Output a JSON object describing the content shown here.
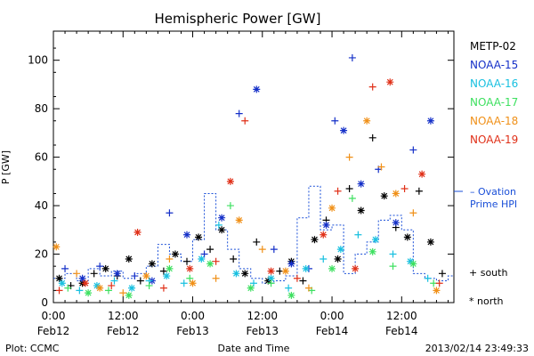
{
  "chart_data": {
    "type": "scatter",
    "title": "Hemispheric Power [GW]",
    "ylabel": "P [GW]",
    "xlabel": "Date and Time",
    "ylim": [
      0,
      112
    ],
    "xlim": [
      0,
      69
    ],
    "yticks": [
      0,
      20,
      40,
      60,
      80,
      100
    ],
    "xticks": [
      {
        "x": 0,
        "line1": "0:00",
        "line2": "Feb12"
      },
      {
        "x": 12,
        "line1": "12:00",
        "line2": "Feb12"
      },
      {
        "x": 24,
        "line1": "0:00",
        "line2": "Feb13"
      },
      {
        "x": 36,
        "line1": "12:00",
        "line2": "Feb13"
      },
      {
        "x": 48,
        "line1": "0:00",
        "line2": "Feb14"
      },
      {
        "x": 60,
        "line1": "12:00",
        "line2": "Feb14"
      }
    ],
    "footer_left": "Plot: CCMC",
    "footer_right": "2013/02/14 23:49:33",
    "legend_placement": "right",
    "marker_key": {
      "south": "+ south",
      "north": "* north"
    },
    "ovation_label_1": "– Ovation",
    "ovation_label_2": "Prime HPI",
    "ovation_color": "#1a4fd8",
    "ovation": {
      "x": [
        0,
        2,
        4,
        6,
        8,
        10,
        12,
        14,
        16,
        18,
        20,
        22,
        24,
        26,
        28,
        30,
        32,
        34,
        36,
        38,
        40,
        42,
        44,
        46,
        48,
        50,
        52,
        54,
        56,
        58,
        60,
        62,
        64,
        66,
        68
      ],
      "y": [
        10,
        12,
        9,
        14,
        11,
        13,
        10,
        12,
        15,
        24,
        20,
        17,
        26,
        45,
        30,
        22,
        14,
        10,
        8,
        9,
        11,
        35,
        48,
        30,
        32,
        12,
        20,
        25,
        34,
        36,
        30,
        12,
        10,
        9,
        11
      ]
    },
    "series": [
      {
        "name": "METP-02",
        "color": "#000000",
        "x": [
          1,
          3,
          5,
          7,
          9,
          11,
          13,
          15,
          17,
          19,
          21,
          23,
          25,
          27,
          29,
          31,
          33,
          35,
          37,
          39,
          41,
          43,
          45,
          47,
          49,
          51,
          53,
          55,
          57,
          59,
          61,
          63,
          65,
          67
        ],
        "y": [
          10,
          7,
          8,
          12,
          14,
          11,
          18,
          9,
          16,
          13,
          20,
          17,
          27,
          22,
          30,
          18,
          12,
          25,
          9,
          13,
          17,
          9,
          26,
          34,
          18,
          47,
          38,
          68,
          44,
          31,
          27,
          46,
          25,
          12
        ]
      },
      {
        "name": "NOAA-15",
        "color": "#1530c8",
        "x": [
          2,
          5,
          8,
          11,
          14,
          17,
          20,
          23,
          26,
          29,
          32,
          35,
          38,
          41,
          44,
          47,
          48.5,
          50,
          51.5,
          53,
          56,
          59,
          62,
          65
        ],
        "y": [
          14,
          10,
          15,
          12,
          11,
          9,
          37,
          28,
          20,
          35,
          78,
          88,
          22,
          16,
          14,
          32,
          75,
          71,
          101,
          49,
          55,
          33,
          63,
          75
        ]
      },
      {
        "name": "NOAA-16",
        "color": "#18c0e0",
        "x": [
          1.5,
          4.5,
          7.5,
          10.5,
          13.5,
          16.5,
          19.5,
          22.5,
          25.5,
          28.5,
          31.5,
          34.5,
          37.5,
          40.5,
          43.5,
          46.5,
          49.5,
          52.5,
          55.5,
          58.5,
          61.5,
          64.5
        ],
        "y": [
          8,
          5,
          7,
          9,
          6,
          9,
          11,
          8,
          18,
          32,
          12,
          8,
          10,
          6,
          14,
          18,
          22,
          28,
          26,
          20,
          17,
          10
        ]
      },
      {
        "name": "NOAA-17",
        "color": "#3ee060",
        "x": [
          2.5,
          6,
          9.5,
          13,
          16.5,
          20,
          23.5,
          27,
          30.5,
          34,
          37.5,
          41,
          44.5,
          48,
          51.5,
          55,
          58.5,
          62,
          65.5
        ],
        "y": [
          6,
          4,
          5,
          3,
          7,
          14,
          10,
          16,
          40,
          6,
          8,
          3,
          5,
          14,
          43,
          21,
          15,
          16,
          8
        ]
      },
      {
        "name": "NOAA-18",
        "color": "#f09018",
        "x": [
          0.5,
          4,
          8,
          12,
          16,
          20,
          24,
          28,
          32,
          36,
          40,
          44,
          48,
          51,
          54,
          56.5,
          59,
          62,
          66
        ],
        "y": [
          23,
          12,
          6,
          4,
          11,
          18,
          8,
          10,
          34,
          22,
          13,
          6,
          39,
          60,
          75,
          56,
          45,
          37,
          5
        ]
      },
      {
        "name": "NOAA-19",
        "color": "#e03018",
        "x": [
          1,
          5.5,
          10,
          14.5,
          19,
          23.5,
          28,
          30.5,
          33,
          37.5,
          42,
          46.5,
          49,
          52,
          55,
          58,
          60.5,
          63.5,
          66.5
        ],
        "y": [
          5,
          8,
          7,
          29,
          6,
          14,
          17,
          50,
          75,
          13,
          10,
          28,
          46,
          14,
          89,
          91,
          47,
          53,
          8
        ]
      }
    ]
  }
}
